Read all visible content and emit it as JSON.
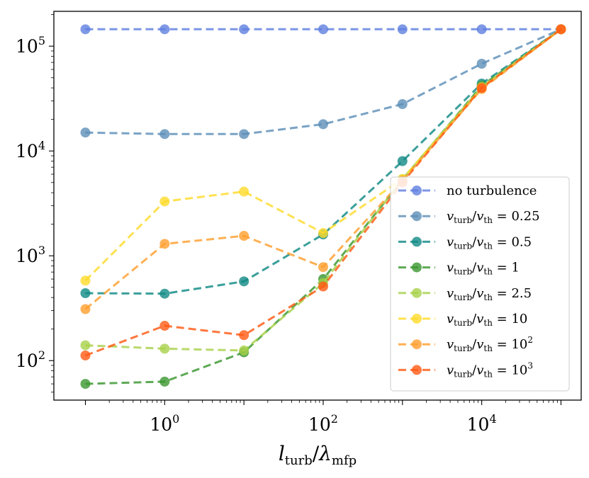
{
  "chart_data": {
    "type": "line",
    "xscale": "log",
    "yscale": "log",
    "xlim": [
      0.04,
      180000
    ],
    "ylim": [
      42,
      215000
    ],
    "x": [
      0.1,
      1,
      10,
      100,
      1000,
      10000,
      100000
    ],
    "xticks": [
      {
        "value": 1,
        "base": "10",
        "exp": "0"
      },
      {
        "value": 100,
        "base": "10",
        "exp": "2"
      },
      {
        "value": 10000,
        "base": "10",
        "exp": "4"
      }
    ],
    "yticks": [
      {
        "value": 100,
        "base": "10",
        "exp": "2"
      },
      {
        "value": 1000,
        "base": "10",
        "exp": "3"
      },
      {
        "value": 10000,
        "base": "10",
        "exp": "4"
      },
      {
        "value": 100000,
        "base": "10",
        "exp": "5"
      }
    ],
    "xlabel": {
      "main": "l",
      "sub": "turb",
      "sep": "/",
      "main2": "λ",
      "sub2": "mfp"
    },
    "legend_position": "lower-right",
    "series": [
      {
        "name": "no turbulence",
        "label_kind": "plain",
        "color": "#5f7fe0",
        "values": [
          145000,
          145000,
          145000,
          145000,
          145000,
          145000,
          145000
        ]
      },
      {
        "name": "0.25",
        "label_kind": "ratio",
        "color": "#5d8fb8",
        "values": [
          15000,
          14500,
          14500,
          18000,
          28000,
          68000,
          145000
        ]
      },
      {
        "name": "0.5",
        "label_kind": "ratio",
        "color": "#108a85",
        "values": [
          440,
          435,
          570,
          1600,
          8000,
          44000,
          145000
        ]
      },
      {
        "name": "1",
        "label_kind": "ratio",
        "color": "#3a9630",
        "values": [
          60,
          63,
          120,
          600,
          5300,
          42000,
          145000
        ]
      },
      {
        "name": "2.5",
        "label_kind": "ratio",
        "color": "#a8d14a",
        "values": [
          140,
          130,
          125,
          550,
          5400,
          41000,
          145000
        ]
      },
      {
        "name": "10",
        "label_kind": "ratio",
        "color": "#ffdb2b",
        "values": [
          580,
          3300,
          4100,
          1650,
          5400,
          40000,
          145000
        ]
      },
      {
        "name": "10",
        "exp": "2",
        "label_kind": "ratio",
        "color": "#ff9f2e",
        "values": [
          310,
          1300,
          1550,
          780,
          5200,
          39000,
          145000
        ]
      },
      {
        "name": "10",
        "exp": "3",
        "label_kind": "ratio",
        "color": "#ff5a14",
        "values": [
          112,
          215,
          175,
          510,
          5000,
          40000,
          145000
        ]
      }
    ],
    "ratio_label": {
      "v1": "v",
      "s1": "turb",
      "sep": "/",
      "v2": "v",
      "s2": "th",
      "eq": " = "
    }
  }
}
